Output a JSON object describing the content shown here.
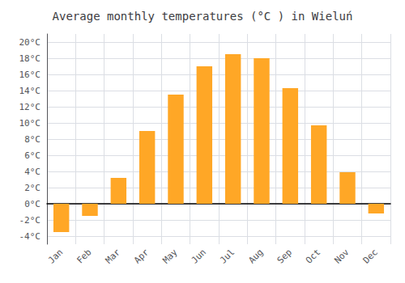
{
  "chart_data": {
    "type": "bar",
    "title": "Average monthly temperatures (°C ) in Wieluń",
    "categories": [
      "Jan",
      "Feb",
      "Mar",
      "Apr",
      "May",
      "Jun",
      "Jul",
      "Aug",
      "Sep",
      "Oct",
      "Nov",
      "Dec"
    ],
    "values": [
      -3.5,
      -1.5,
      3.2,
      9.0,
      13.5,
      17.0,
      18.5,
      18.0,
      14.3,
      9.7,
      3.9,
      -1.2
    ],
    "color": "#FFA726",
    "ylim": [
      -5,
      21
    ],
    "yticks": [
      {
        "value": -4,
        "label": "-4°C"
      },
      {
        "value": -2,
        "label": "-2°C"
      },
      {
        "value": 0,
        "label": "0°C"
      },
      {
        "value": 2,
        "label": "2°C"
      },
      {
        "value": 4,
        "label": "4°C"
      },
      {
        "value": 6,
        "label": "6°C"
      },
      {
        "value": 8,
        "label": "8°C"
      },
      {
        "value": 10,
        "label": "10°C"
      },
      {
        "value": 12,
        "label": "12°C"
      },
      {
        "value": 14,
        "label": "14°C"
      },
      {
        "value": 16,
        "label": "16°C"
      },
      {
        "value": 18,
        "label": "18°C"
      },
      {
        "value": 20,
        "label": "20°C"
      }
    ],
    "grid": true
  }
}
